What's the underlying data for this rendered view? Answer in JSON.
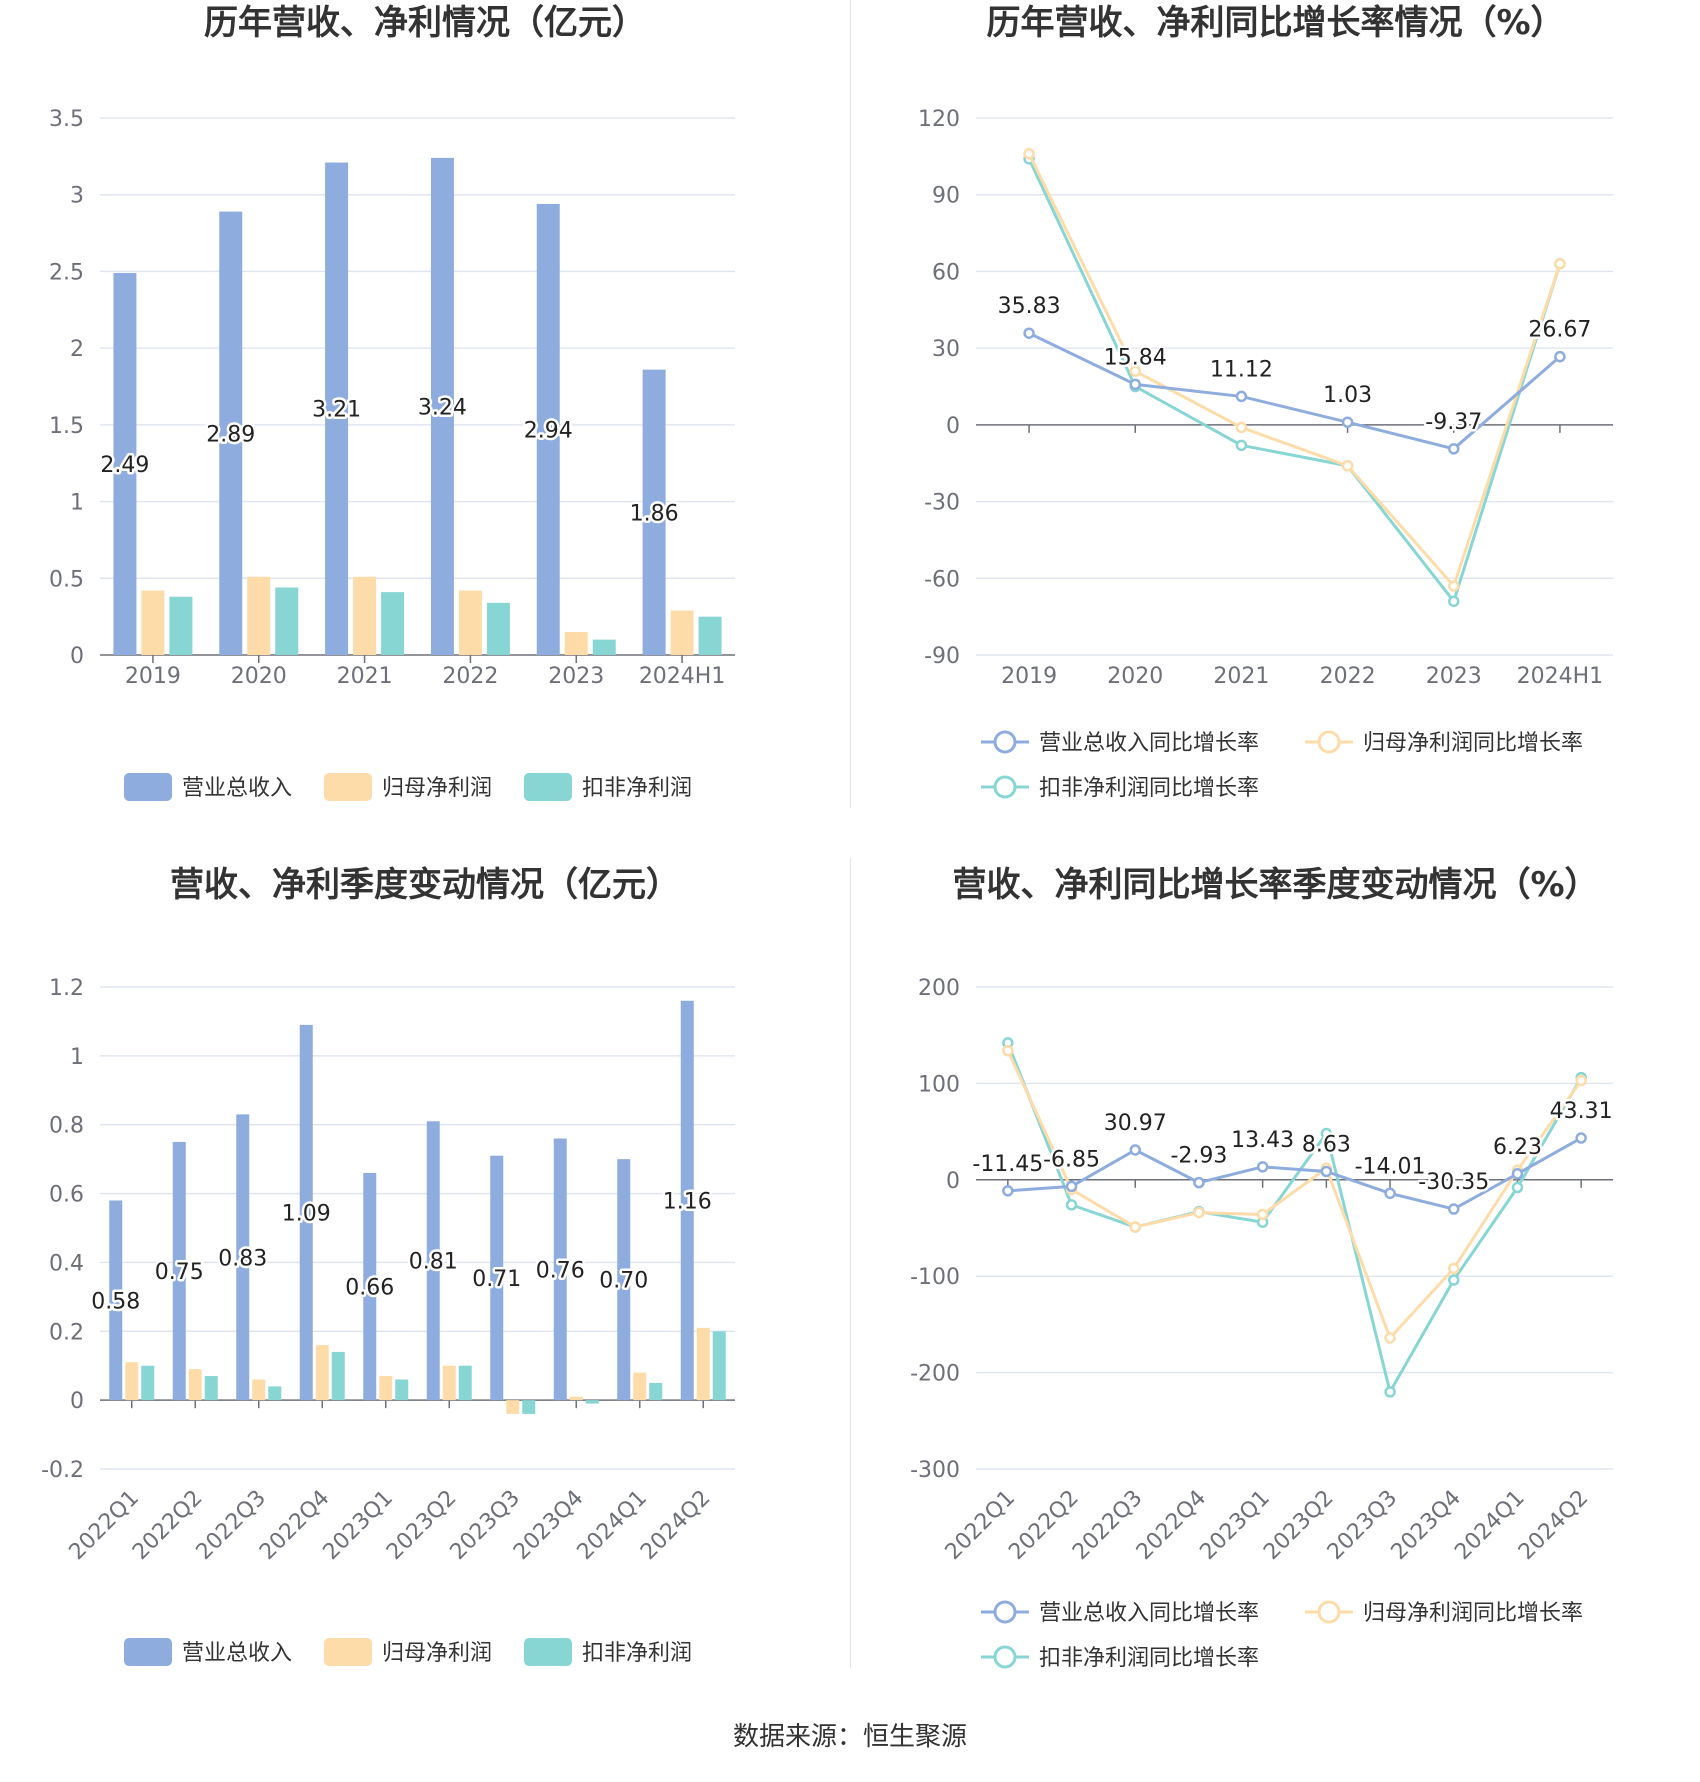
{
  "colors": {
    "revenue": "#8eadde",
    "net_profit": "#fddcaa",
    "deducted_profit": "#88d6d4",
    "grid": "#e0e6f1",
    "axis": "#6e7079"
  },
  "legend_bar": [
    "营业总收入",
    "归母净利润",
    "扣非净利润"
  ],
  "legend_line": [
    "营业总收入同比增长率",
    "归母净利润同比增长率",
    "扣非净利润同比增长率"
  ],
  "source": "数据来源：恒生聚源",
  "chart_data": [
    {
      "type": "bar",
      "title": "历年营收、净利情况（亿元）",
      "categories": [
        "2019",
        "2020",
        "2021",
        "2022",
        "2023",
        "2024H1"
      ],
      "ylim": [
        0,
        3.5
      ],
      "yticks": [
        "3.5",
        "3",
        "2.5",
        "2",
        "1.5",
        "1",
        "0.5",
        "0"
      ],
      "ytick_values": [
        3.5,
        3,
        2.5,
        2,
        1.5,
        1,
        0.5,
        0
      ],
      "series": [
        {
          "name": "营业总收入",
          "values": [
            2.49,
            2.89,
            3.21,
            3.24,
            2.94,
            1.86
          ],
          "labels": [
            "2.49",
            "2.89",
            "3.21",
            "3.24",
            "2.94",
            "1.86"
          ]
        },
        {
          "name": "归母净利润",
          "values": [
            0.42,
            0.51,
            0.51,
            0.42,
            0.15,
            0.29
          ]
        },
        {
          "name": "扣非净利润",
          "values": [
            0.38,
            0.44,
            0.41,
            0.34,
            0.1,
            0.25
          ]
        }
      ],
      "legend": "bottom",
      "grid": true
    },
    {
      "type": "line",
      "title": "历年营收、净利同比增长率情况（%）",
      "categories": [
        "2019",
        "2020",
        "2021",
        "2022",
        "2023",
        "2024H1"
      ],
      "ylim": [
        -90,
        120
      ],
      "yticks": [
        "120",
        "90",
        "60",
        "30",
        "0",
        "-30",
        "-60",
        "-90"
      ],
      "ytick_values": [
        120,
        90,
        60,
        30,
        0,
        -30,
        -60,
        -90
      ],
      "series": [
        {
          "name": "营业总收入同比增长率",
          "values": [
            35.83,
            15.84,
            11.12,
            1.03,
            -9.37,
            26.67
          ],
          "labels": [
            "35.83",
            "15.84",
            "11.12",
            "1.03",
            "-9.37",
            "26.67"
          ]
        },
        {
          "name": "归母净利润同比增长率",
          "values": [
            106,
            21,
            -1,
            -16,
            -63,
            63
          ]
        },
        {
          "name": "扣非净利润同比增长率",
          "values": [
            104,
            15,
            -8,
            -16,
            -69,
            63
          ]
        }
      ],
      "legend": "bottom",
      "grid": true
    },
    {
      "type": "bar",
      "title": "营收、净利季度变动情况（亿元）",
      "categories": [
        "2022Q1",
        "2022Q2",
        "2022Q3",
        "2022Q4",
        "2023Q1",
        "2023Q2",
        "2023Q3",
        "2023Q4",
        "2024Q1",
        "2024Q2"
      ],
      "ylim": [
        -0.2,
        1.2
      ],
      "yticks": [
        "1.2",
        "1",
        "0.8",
        "0.6",
        "0.4",
        "0.2",
        "0",
        "-0.2"
      ],
      "ytick_values": [
        1.2,
        1,
        0.8,
        0.6,
        0.4,
        0.2,
        0,
        -0.2
      ],
      "series": [
        {
          "name": "营业总收入",
          "values": [
            0.58,
            0.75,
            0.83,
            1.09,
            0.66,
            0.81,
            0.71,
            0.76,
            0.7,
            1.16
          ],
          "labels": [
            "0.58",
            "0.75",
            "0.83",
            "1.09",
            "0.66",
            "0.81",
            "0.71",
            "0.76",
            "0.70",
            "1.16"
          ]
        },
        {
          "name": "归母净利润",
          "values": [
            0.11,
            0.09,
            0.06,
            0.16,
            0.07,
            0.1,
            -0.04,
            0.01,
            0.08,
            0.21
          ]
        },
        {
          "name": "扣非净利润",
          "values": [
            0.1,
            0.07,
            0.04,
            0.14,
            0.06,
            0.1,
            -0.04,
            -0.01,
            0.05,
            0.2
          ]
        }
      ],
      "legend": "bottom",
      "grid": true
    },
    {
      "type": "line",
      "title": "营收、净利同比增长率季度变动情况（%）",
      "categories": [
        "2022Q1",
        "2022Q2",
        "2022Q3",
        "2022Q4",
        "2023Q1",
        "2023Q2",
        "2023Q3",
        "2023Q4",
        "2024Q1",
        "2024Q2"
      ],
      "ylim": [
        -300,
        200
      ],
      "yticks": [
        "200",
        "100",
        "0",
        "-100",
        "-200",
        "-300"
      ],
      "ytick_values": [
        200,
        100,
        0,
        -100,
        -200,
        -300
      ],
      "series": [
        {
          "name": "营业总收入同比增长率",
          "values": [
            -11.45,
            -6.85,
            30.97,
            -2.93,
            13.43,
            8.63,
            -14.01,
            -30.35,
            6.23,
            43.31
          ],
          "labels": [
            "-11.45",
            "-6.85",
            "30.97",
            "-2.93",
            "13.43",
            "8.63",
            "-14.01",
            "-30.35",
            "6.23",
            "43.31"
          ]
        },
        {
          "name": "归母净利润同比增长率",
          "values": [
            134,
            -10,
            -49,
            -34,
            -36,
            12,
            -164,
            -92,
            10,
            103
          ]
        },
        {
          "name": "扣非净利润同比增长率",
          "values": [
            142,
            -26,
            -49,
            -33,
            -44,
            48,
            -220,
            -104,
            -8,
            106
          ]
        }
      ],
      "legend": "bottom",
      "grid": true
    }
  ]
}
